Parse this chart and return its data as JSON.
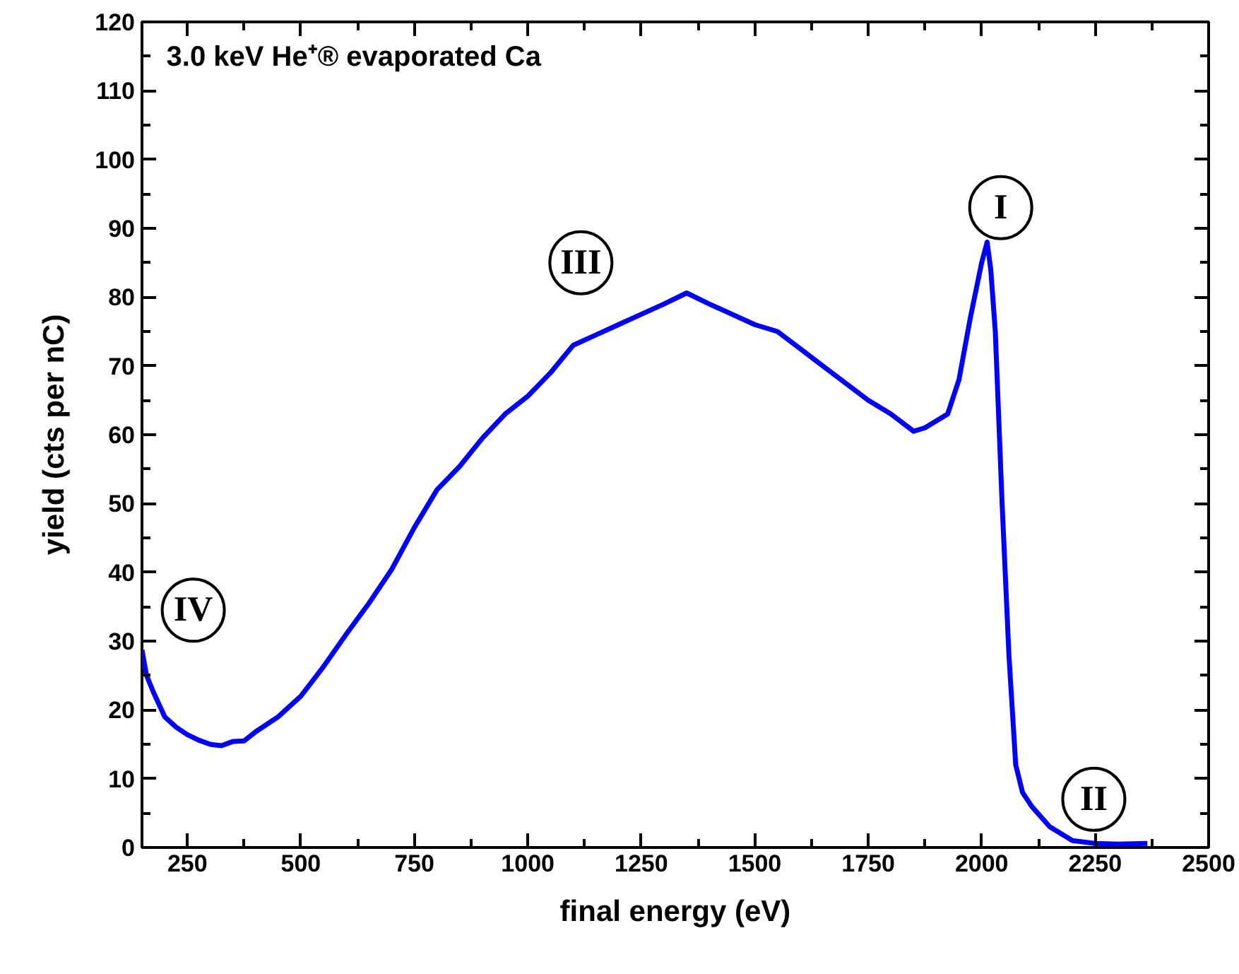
{
  "chart_data": {
    "type": "line",
    "title": "3.0 keV He⁺®  evaporated Ca",
    "xlabel": "final energy (eV)",
    "ylabel": "yield (cts per nC)",
    "xlim": [
      150,
      2500
    ],
    "ylim": [
      0,
      120
    ],
    "xticks": [
      250,
      500,
      750,
      1000,
      1250,
      1500,
      1750,
      2000,
      2250,
      2500
    ],
    "yticks": [
      0,
      10,
      20,
      30,
      40,
      50,
      60,
      70,
      80,
      90,
      100,
      110,
      120
    ],
    "grid": false,
    "marker": "none",
    "line_style": "solid",
    "annotations": [
      {
        "text": "I",
        "x": 2042,
        "y": 93
      },
      {
        "text": "II",
        "x": 2247,
        "y": 7
      },
      {
        "text": "III",
        "x": 1117,
        "y": 85
      },
      {
        "text": "IV",
        "x": 263,
        "y": 34.5
      }
    ],
    "series": [
      {
        "color": "#0000ff",
        "x": [
          150,
          160,
          175,
          200,
          225,
          250,
          275,
          300,
          325,
          350,
          375,
          400,
          450,
          500,
          550,
          600,
          650,
          700,
          750,
          800,
          850,
          900,
          950,
          1000,
          1050,
          1100,
          1150,
          1200,
          1250,
          1300,
          1350,
          1400,
          1450,
          1500,
          1550,
          1600,
          1650,
          1700,
          1750,
          1800,
          1850,
          1875,
          1900,
          1925,
          1950,
          1975,
          2000,
          2012,
          2020,
          2030,
          2045,
          2060,
          2075,
          2090,
          2110,
          2150,
          2200,
          2250,
          2300,
          2365
        ],
        "values": [
          28.7,
          25,
          22.6,
          19,
          17.5,
          16.4,
          15.6,
          15,
          14.8,
          15.4,
          15.5,
          16.8,
          19,
          22,
          26.3,
          31,
          35.5,
          40.4,
          46.5,
          52,
          55.4,
          59.5,
          63,
          65.6,
          69,
          73,
          74.5,
          76,
          77.5,
          79,
          80.6,
          79,
          77.5,
          76,
          75,
          72.5,
          70,
          67.5,
          65,
          63,
          60.5,
          61,
          62,
          63,
          68,
          77,
          85,
          88,
          84,
          75,
          50,
          28,
          12,
          8,
          6,
          3,
          1,
          0.6,
          0.5,
          0.6
        ]
      }
    ]
  }
}
